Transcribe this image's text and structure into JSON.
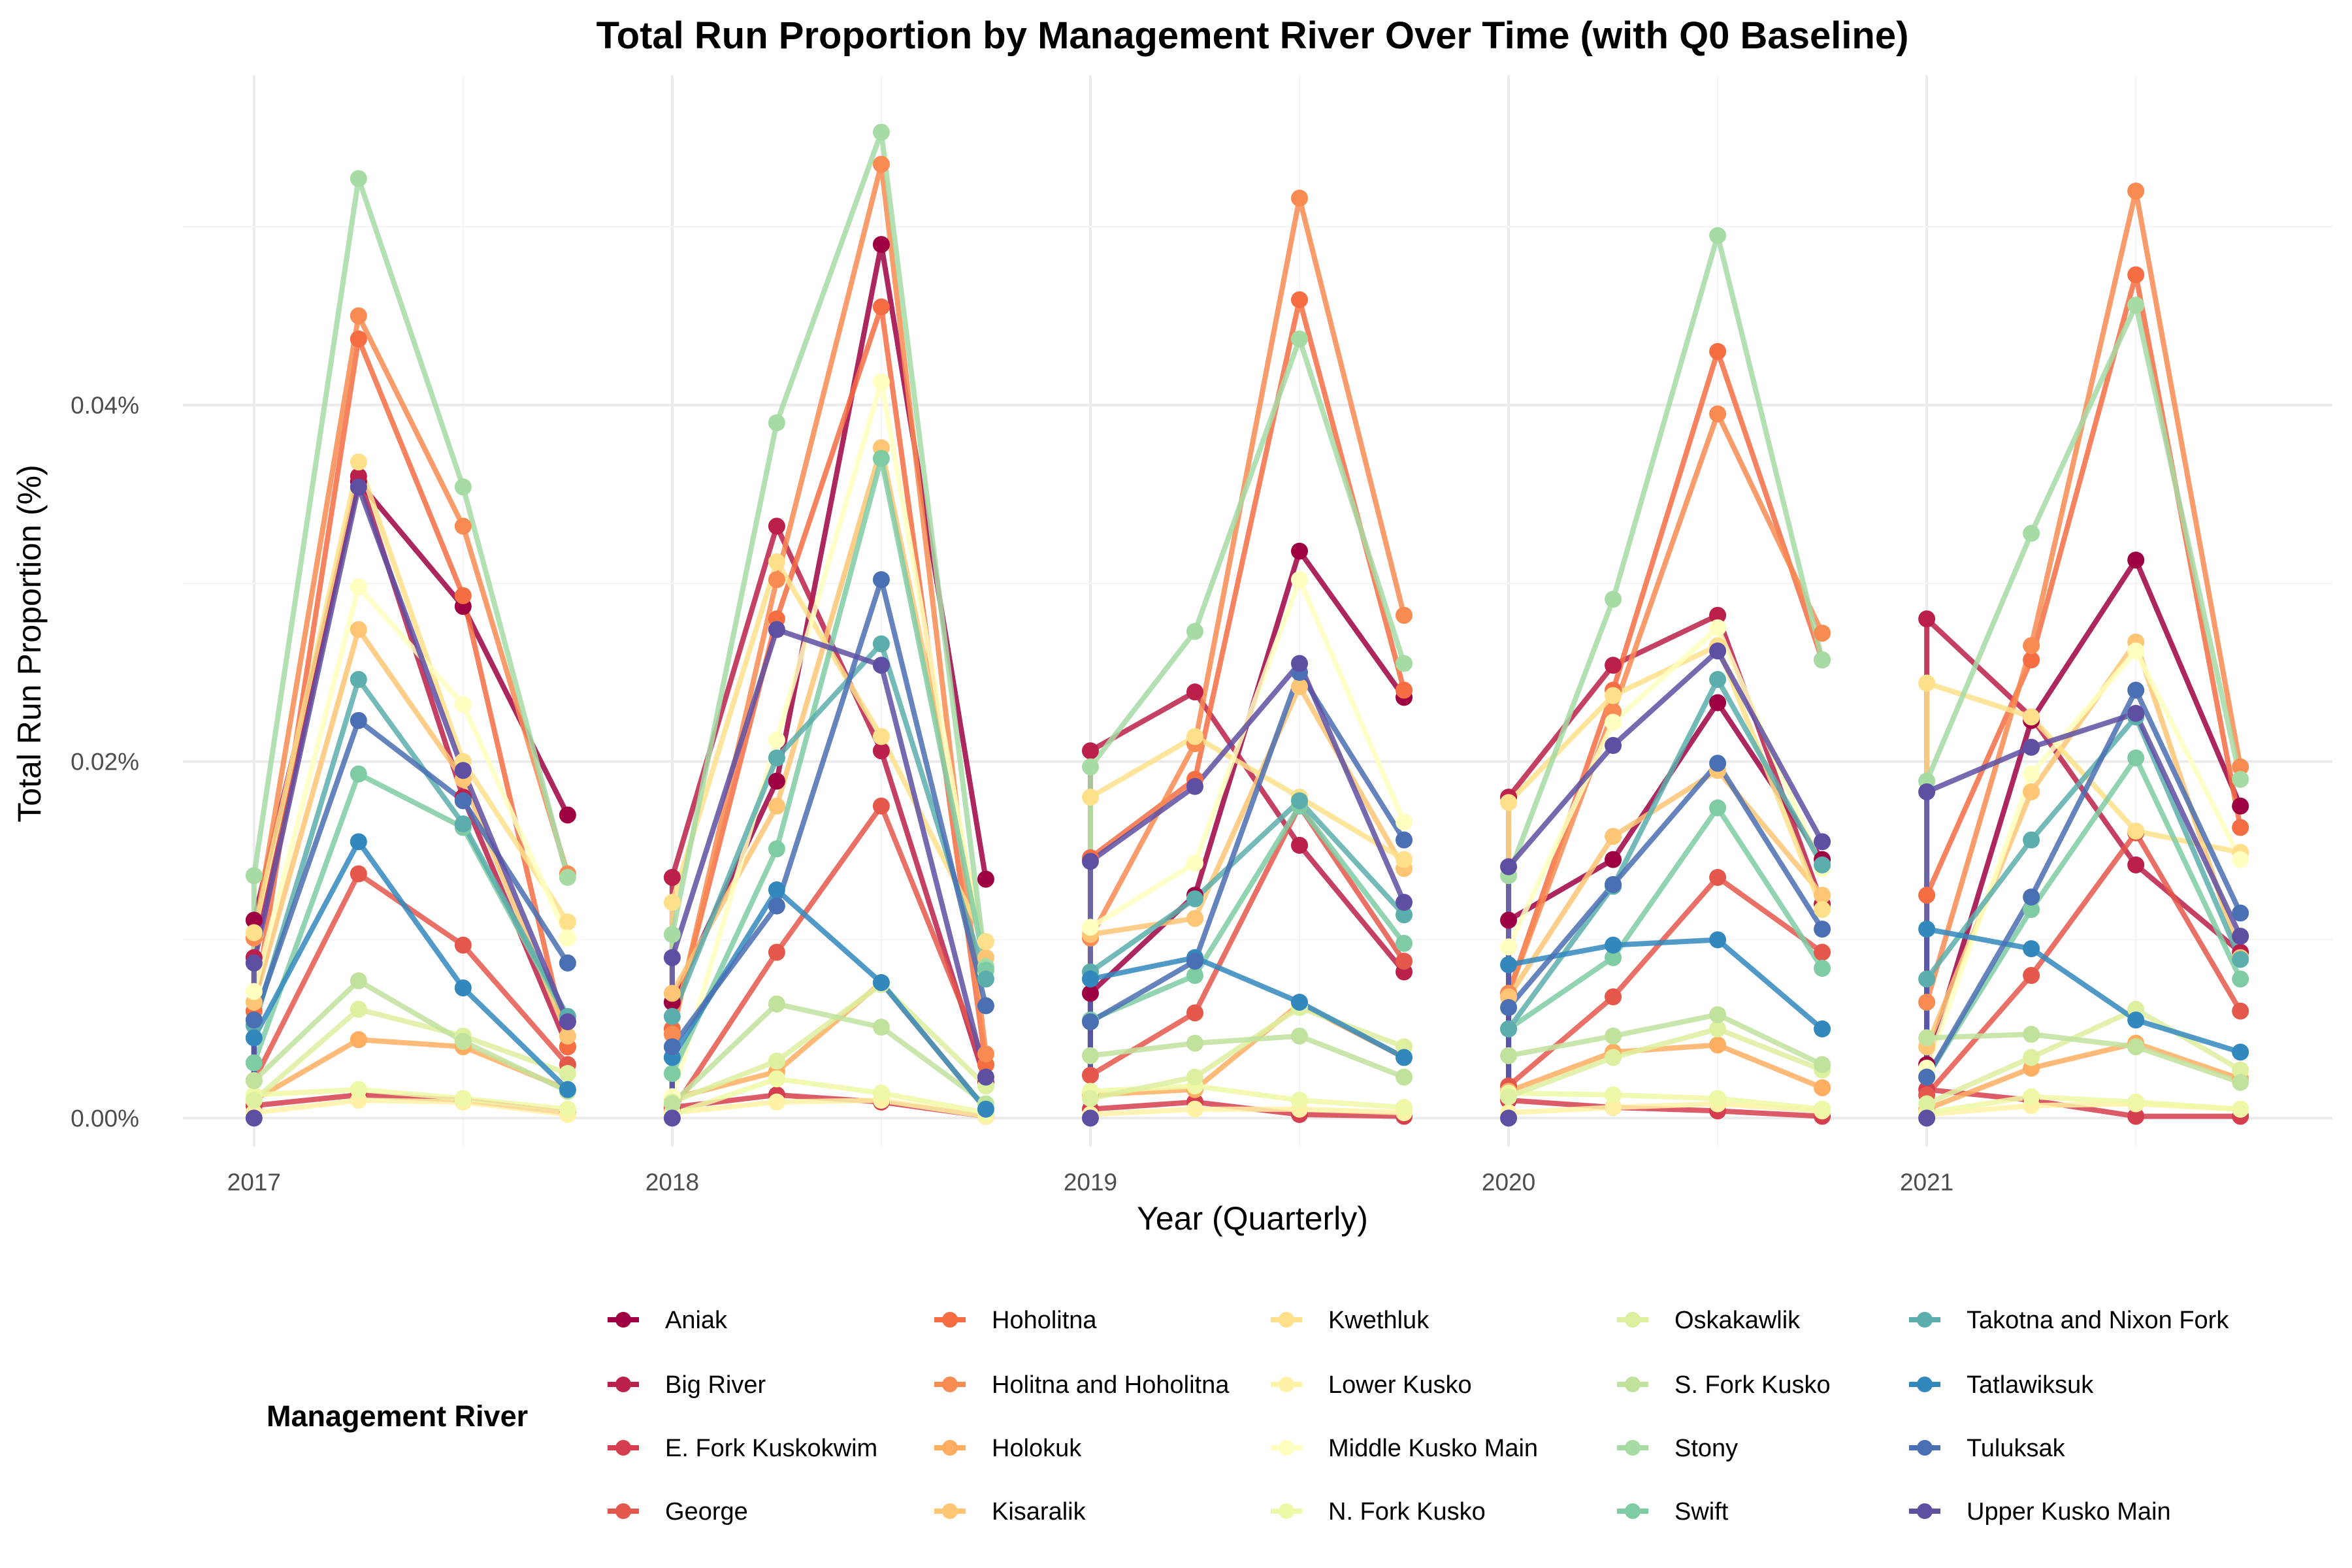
{
  "chart_data": {
    "type": "line",
    "title": "Total Run Proportion by Management River Over Time (with Q0 Baseline)",
    "xlabel": "Year (Quarterly)",
    "ylabel": "Total Run Proportion (%)",
    "x_ticks": [
      "2017",
      "2018",
      "2019",
      "2020",
      "2021"
    ],
    "y_ticks": [
      "0.00%",
      "0.02%",
      "0.04%"
    ],
    "ylim": [
      -0.0016,
      0.0585
    ],
    "xlim": [
      2016.83,
      2021.97
    ],
    "grid": true,
    "legend_title": "Management River",
    "legend_position": "bottom",
    "x": [
      2017,
      2017.25,
      2017.5,
      2017.75,
      2018,
      2018.25,
      2018.5,
      2018.75,
      2019,
      2019.25,
      2019.5,
      2019.75,
      2020,
      2020.25,
      2020.5,
      2020.75,
      2021,
      2021.25,
      2021.5,
      2021.75
    ],
    "series": [
      {
        "name": "Aniak",
        "color": "#9E0142",
        "values": [
          0.0111,
          0.0357,
          0.0287,
          0.017,
          0.0065,
          0.0189,
          0.049,
          0.0134,
          0.007,
          0.0125,
          0.0318,
          0.0236,
          0.0111,
          0.0145,
          0.0233,
          0.0145,
          0.003,
          0.0223,
          0.0313,
          0.0175
        ]
      },
      {
        "name": "Big River",
        "color": "#BA2049",
        "values": [
          0.009,
          0.036,
          0.018,
          0.004,
          0.0135,
          0.0332,
          0.0206,
          0.002,
          0.0206,
          0.0239,
          0.0153,
          0.0082,
          0.018,
          0.0254,
          0.0282,
          0.012,
          0.028,
          0.0225,
          0.0142,
          0.0093
        ]
      },
      {
        "name": "E. Fork Kuskokwim",
        "color": "#D53E4F",
        "values": [
          0.0007,
          0.0013,
          0.001,
          0.0003,
          0.0006,
          0.0013,
          0.0009,
          0.0001,
          0.0005,
          0.0009,
          0.0002,
          0.0001,
          0.001,
          0.0006,
          0.0004,
          0.0001,
          0.0016,
          0.001,
          0.0001,
          0.0001
        ]
      },
      {
        "name": "George",
        "color": "#E4574B",
        "values": [
          0.0021,
          0.0137,
          0.0097,
          0.003,
          0.0004,
          0.0093,
          0.0175,
          0.003,
          0.0024,
          0.0059,
          0.0175,
          0.0088,
          0.0018,
          0.0068,
          0.0135,
          0.0093,
          0.0013,
          0.008,
          0.016,
          0.006
        ]
      },
      {
        "name": "Hoholitna",
        "color": "#F46D43",
        "values": [
          0.006,
          0.0437,
          0.0293,
          0.004,
          0.005,
          0.028,
          0.0455,
          0.003,
          0.0146,
          0.019,
          0.0459,
          0.024,
          0.007,
          0.024,
          0.043,
          0.0257,
          0.0125,
          0.0257,
          0.0473,
          0.0163
        ]
      },
      {
        "name": "Holitna and Hoholitna",
        "color": "#F88B52",
        "values": [
          0.0101,
          0.045,
          0.0332,
          0.0137,
          0.0047,
          0.0302,
          0.0535,
          0.0036,
          0.0101,
          0.021,
          0.0516,
          0.0282,
          0.007,
          0.0228,
          0.0395,
          0.0272,
          0.0065,
          0.0265,
          0.052,
          0.0197
        ]
      },
      {
        "name": "Holokuk",
        "color": "#FDAE61",
        "values": [
          0.001,
          0.0044,
          0.004,
          0.0016,
          0.0011,
          0.0026,
          0.0076,
          0.0005,
          0.0013,
          0.0016,
          0.0064,
          0.0034,
          0.0015,
          0.0037,
          0.0041,
          0.0017,
          0.0005,
          0.0028,
          0.0042,
          0.0022
        ]
      },
      {
        "name": "Kisaralik",
        "color": "#FDC574",
        "values": [
          0.0065,
          0.0274,
          0.019,
          0.0046,
          0.007,
          0.0175,
          0.0376,
          0.009,
          0.0103,
          0.0112,
          0.0242,
          0.014,
          0.0068,
          0.0158,
          0.0195,
          0.0125,
          0.004,
          0.0183,
          0.0267,
          0.009
        ]
      },
      {
        "name": "Kwethluk",
        "color": "#FEE08B",
        "values": [
          0.0104,
          0.0368,
          0.02,
          0.011,
          0.0121,
          0.0312,
          0.0214,
          0.0099,
          0.018,
          0.0214,
          0.018,
          0.0145,
          0.0177,
          0.0237,
          0.0265,
          0.0117,
          0.0244,
          0.0225,
          0.0161,
          0.0149
        ]
      },
      {
        "name": "Lower Kusko",
        "color": "#FFF2A6",
        "values": [
          0.0003,
          0.001,
          0.0009,
          0.0002,
          0.0003,
          0.0009,
          0.001,
          0.0001,
          0.0002,
          0.0005,
          0.0005,
          0.0003,
          0.0003,
          0.0006,
          0.0008,
          0.0004,
          0.0002,
          0.0007,
          0.0008,
          0.0005
        ]
      },
      {
        "name": "Middle Kusko Main",
        "color": "#FFFFBF",
        "values": [
          0.0071,
          0.0298,
          0.0232,
          0.0101,
          0.0012,
          0.0212,
          0.0413,
          0.0082,
          0.0107,
          0.0143,
          0.0302,
          0.0166,
          0.0096,
          0.0222,
          0.0275,
          0.014,
          0.0028,
          0.0193,
          0.0262,
          0.0145
        ]
      },
      {
        "name": "N. Fork Kusko",
        "color": "#EEF8A6",
        "values": [
          0.0013,
          0.0016,
          0.0011,
          0.0005,
          0.0002,
          0.0022,
          0.0014,
          0.0003,
          0.0015,
          0.0018,
          0.001,
          0.0006,
          0.0014,
          0.0013,
          0.0011,
          0.0005,
          0.0003,
          0.0012,
          0.0009,
          0.0005
        ]
      },
      {
        "name": "Oskakawlik",
        "color": "#DDF0A0",
        "values": [
          0.001,
          0.0061,
          0.0046,
          0.0025,
          0.0009,
          0.0032,
          0.0075,
          0.0018,
          0.0011,
          0.0023,
          0.0062,
          0.004,
          0.0012,
          0.0034,
          0.005,
          0.0027,
          0.0008,
          0.0034,
          0.0061,
          0.0027
        ]
      },
      {
        "name": "S. Fork Kusko",
        "color": "#C1E29D",
        "values": [
          0.0021,
          0.0077,
          0.0043,
          0.0015,
          0.0008,
          0.0064,
          0.0051,
          0.0008,
          0.0035,
          0.0042,
          0.0046,
          0.0023,
          0.0035,
          0.0046,
          0.0058,
          0.003,
          0.0045,
          0.0047,
          0.004,
          0.002
        ]
      },
      {
        "name": "Stony",
        "color": "#A6DBA4",
        "values": [
          0.0136,
          0.0527,
          0.0354,
          0.0135,
          0.0103,
          0.039,
          0.0553,
          0.0085,
          0.0197,
          0.0273,
          0.0437,
          0.0255,
          0.0136,
          0.0291,
          0.0495,
          0.0257,
          0.0189,
          0.0328,
          0.0456,
          0.019
        ]
      },
      {
        "name": "Swift",
        "color": "#7FCBA4",
        "values": [
          0.0031,
          0.0193,
          0.0163,
          0.0055,
          0.0025,
          0.0151,
          0.037,
          0.0083,
          0.0055,
          0.008,
          0.0175,
          0.0098,
          0.005,
          0.009,
          0.0174,
          0.0084,
          0.0023,
          0.0117,
          0.0202,
          0.0078
        ]
      },
      {
        "name": "Takotna and Nixon Fork",
        "color": "#5CAEAD",
        "values": [
          0.0052,
          0.0246,
          0.0165,
          0.0057,
          0.0057,
          0.0202,
          0.0266,
          0.0078,
          0.0082,
          0.0123,
          0.0178,
          0.0114,
          0.005,
          0.013,
          0.0246,
          0.0142,
          0.0078,
          0.0156,
          0.0225,
          0.0089
        ]
      },
      {
        "name": "Tatlawiksuk",
        "color": "#3288BD",
        "values": [
          0.0045,
          0.0155,
          0.0073,
          0.0016,
          0.0034,
          0.0128,
          0.0076,
          0.0005,
          0.0078,
          0.009,
          0.0065,
          0.0034,
          0.0086,
          0.0097,
          0.01,
          0.005,
          0.0106,
          0.0095,
          0.0055,
          0.0037
        ]
      },
      {
        "name": "Tuluksak",
        "color": "#4A6FB3",
        "values": [
          0.0055,
          0.0223,
          0.0178,
          0.0087,
          0.004,
          0.0119,
          0.0302,
          0.0063,
          0.0054,
          0.0088,
          0.025,
          0.0156,
          0.0062,
          0.0131,
          0.0199,
          0.0106,
          0.0023,
          0.0124,
          0.024,
          0.0115
        ]
      },
      {
        "name": "Upper Kusko Main",
        "color": "#5E4FA2",
        "values": [
          0.0087,
          0.0354,
          0.0195,
          0.0054,
          0.009,
          0.0274,
          0.0254,
          0.0023,
          0.0144,
          0.0186,
          0.0255,
          0.0121,
          0.0141,
          0.0209,
          0.0262,
          0.0155,
          0.0183,
          0.0208,
          0.0227,
          0.0102
        ]
      }
    ],
    "q0_baseline": {
      "x": [
        2017,
        2018,
        2019,
        2020,
        2021
      ],
      "value": 0.0
    }
  }
}
